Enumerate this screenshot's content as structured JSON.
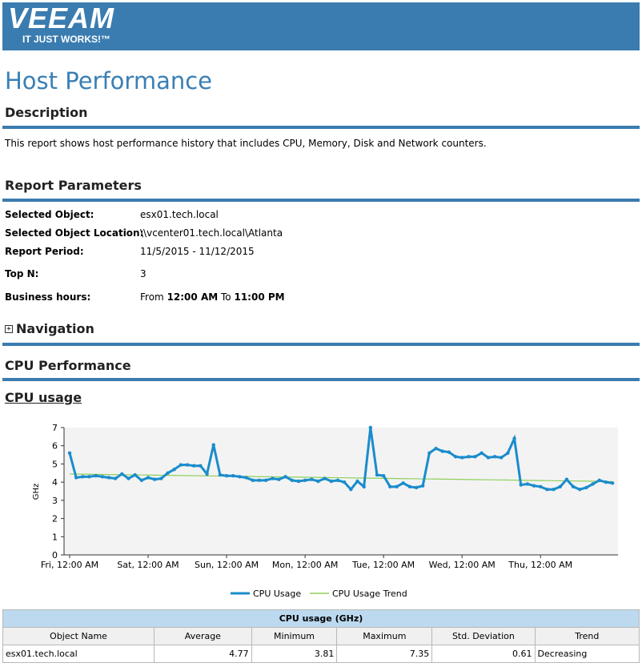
{
  "header": {
    "logo": "VEEAM",
    "tagline": "IT JUST WORKS!™"
  },
  "title": "Host Performance",
  "description": {
    "heading": "Description",
    "text": "This report shows host performance history that includes CPU, Memory, Disk and Network counters."
  },
  "parameters": {
    "heading": "Report Parameters",
    "rows": [
      [
        "Selected Object:",
        "esx01.tech.local"
      ],
      [
        "Selected Object Location:",
        "\\\\vcenter01.tech.local\\Atlanta"
      ],
      [
        "Report Period:",
        "11/5/2015 - 11/12/2015"
      ],
      [
        "Top N:",
        "3"
      ]
    ],
    "business_hours": {
      "label": "Business hours:",
      "from": "From",
      "start": "12:00 AM",
      "to": "To",
      "end": "11:00 PM"
    }
  },
  "navigation": "Navigation",
  "section": "CPU Performance",
  "chart_heading": "CPU usage",
  "chart_data": {
    "type": "line",
    "y_label": "GHz",
    "categories": [
      "Fri, 12:00 AM",
      null,
      null,
      null,
      null,
      null,
      null,
      null,
      null,
      null,
      null,
      null,
      "Sat, 12:00 AM",
      null,
      null,
      null,
      null,
      null,
      null,
      null,
      null,
      null,
      null,
      null,
      "Sun, 12:00 AM",
      null,
      null,
      null,
      null,
      null,
      null,
      null,
      null,
      null,
      null,
      null,
      "Mon, 12:00 AM",
      null,
      null,
      null,
      null,
      null,
      null,
      null,
      null,
      null,
      null,
      null,
      "Tue, 12:00 AM",
      null,
      null,
      null,
      null,
      null,
      null,
      null,
      null,
      null,
      null,
      null,
      "Wed, 12:00 AM",
      null,
      null,
      null,
      null,
      null,
      null,
      null,
      null,
      null,
      null,
      null,
      "Thu, 12:00 AM",
      null,
      null,
      null,
      null,
      null,
      null,
      null,
      null,
      null,
      null,
      null
    ],
    "series": [
      {
        "name": "CPU Usage",
        "color": "#1a8ccc",
        "values": [
          5.6,
          4.25,
          4.3,
          4.3,
          4.35,
          4.3,
          4.25,
          4.2,
          4.45,
          4.2,
          4.4,
          4.1,
          4.25,
          4.15,
          4.2,
          4.5,
          4.7,
          4.95,
          4.95,
          4.9,
          4.9,
          4.45,
          6.05,
          4.4,
          4.35,
          4.35,
          4.3,
          4.25,
          4.1,
          4.1,
          4.1,
          4.2,
          4.15,
          4.3,
          4.1,
          4.05,
          4.1,
          4.15,
          4.05,
          4.2,
          4.05,
          4.1,
          4.0,
          3.6,
          4.05,
          3.75,
          7.0,
          4.4,
          4.35,
          3.75,
          3.75,
          3.95,
          3.75,
          3.7,
          3.8,
          5.6,
          5.85,
          5.7,
          5.65,
          5.4,
          5.35,
          5.4,
          5.4,
          5.6,
          5.35,
          5.4,
          5.35,
          5.6,
          6.4,
          3.85,
          3.9,
          3.8,
          3.75,
          3.6,
          3.6,
          3.75,
          4.15,
          3.75,
          3.6,
          3.7,
          3.9,
          4.1,
          4.0,
          3.95
        ]
      },
      {
        "name": "CPU Usage Trend",
        "color": "#8fcf5a",
        "values": [
          4.45,
          4.445,
          4.44,
          4.435,
          4.43,
          4.425,
          4.42,
          4.415,
          4.41,
          4.405,
          4.4,
          4.395,
          4.39,
          4.385,
          4.38,
          4.375,
          4.37,
          4.365,
          4.36,
          4.355,
          4.35,
          4.345,
          4.34,
          4.335,
          4.33,
          4.325,
          4.32,
          4.315,
          4.31,
          4.305,
          4.3,
          4.295,
          4.29,
          4.285,
          4.28,
          4.275,
          4.27,
          4.265,
          4.26,
          4.255,
          4.25,
          4.245,
          4.24,
          4.235,
          4.23,
          4.225,
          4.22,
          4.215,
          4.21,
          4.205,
          4.2,
          4.195,
          4.19,
          4.185,
          4.18,
          4.175,
          4.17,
          4.165,
          4.16,
          4.155,
          4.15,
          4.145,
          4.14,
          4.135,
          4.13,
          4.125,
          4.12,
          4.115,
          4.11,
          4.105,
          4.1,
          4.095,
          4.09,
          4.085,
          4.08,
          4.075,
          4.07,
          4.065,
          4.06,
          4.055,
          4.05,
          4.045,
          4.04,
          4.035
        ]
      }
    ],
    "ylim": [
      0,
      7
    ],
    "yticks": [
      0,
      1,
      2,
      3,
      4,
      5,
      6,
      7
    ],
    "grid": false,
    "legend": "bottom"
  },
  "table": {
    "title": "CPU usage (GHz)",
    "columns": [
      "Object Name",
      "Average",
      "Minimum",
      "Maximum",
      "Std. Deviation",
      "Trend"
    ],
    "rows": [
      [
        "esx01.tech.local",
        4.77,
        3.81,
        7.35,
        0.61,
        "Decreasing"
      ]
    ]
  }
}
